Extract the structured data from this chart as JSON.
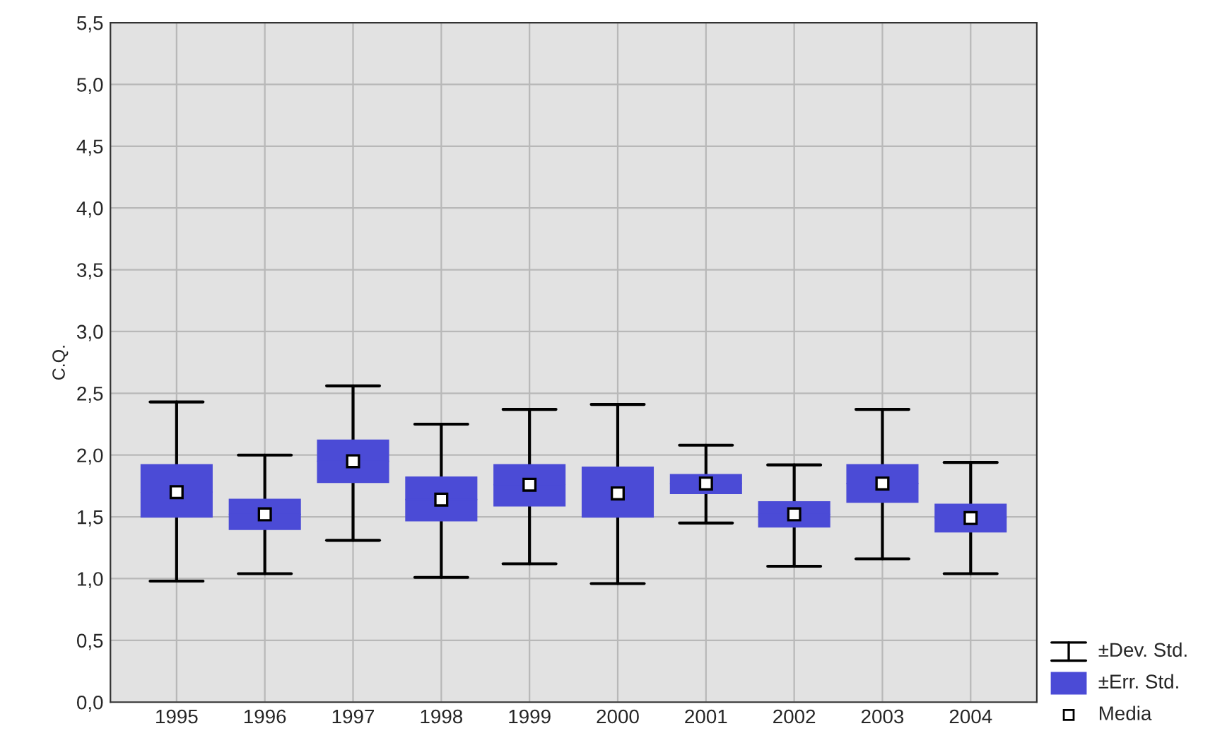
{
  "chart_data": {
    "type": "box",
    "ylabel": "C.Q.",
    "categories": [
      "1995",
      "1996",
      "1997",
      "1998",
      "1999",
      "2000",
      "2001",
      "2002",
      "2003",
      "2004"
    ],
    "boxes": [
      {
        "low": 0.98,
        "q1": 1.5,
        "median": 1.7,
        "q3": 1.92,
        "high": 2.43,
        "mean": 1.7
      },
      {
        "low": 1.04,
        "q1": 1.4,
        "median": 1.52,
        "q3": 1.64,
        "high": 2.0,
        "mean": 1.52
      },
      {
        "low": 1.31,
        "q1": 1.78,
        "median": 1.95,
        "q3": 2.12,
        "high": 2.56,
        "mean": 1.95
      },
      {
        "low": 1.01,
        "q1": 1.47,
        "median": 1.64,
        "q3": 1.82,
        "high": 2.25,
        "mean": 1.64
      },
      {
        "low": 1.12,
        "q1": 1.59,
        "median": 1.76,
        "q3": 1.92,
        "high": 2.37,
        "mean": 1.76
      },
      {
        "low": 0.96,
        "q1": 1.5,
        "median": 1.69,
        "q3": 1.9,
        "high": 2.41,
        "mean": 1.69
      },
      {
        "low": 1.45,
        "q1": 1.69,
        "median": 1.77,
        "q3": 1.84,
        "high": 2.08,
        "mean": 1.77
      },
      {
        "low": 1.1,
        "q1": 1.42,
        "median": 1.52,
        "q3": 1.62,
        "high": 1.92,
        "mean": 1.52
      },
      {
        "low": 1.16,
        "q1": 1.62,
        "median": 1.77,
        "q3": 1.92,
        "high": 2.37,
        "mean": 1.77
      },
      {
        "low": 1.04,
        "q1": 1.38,
        "median": 1.49,
        "q3": 1.6,
        "high": 1.94,
        "mean": 1.49
      }
    ],
    "color": "#4b4bd6",
    "ylim": [
      0,
      5.5
    ],
    "yticks": [
      {
        "value": 0,
        "label": "0,0"
      },
      {
        "value": 0.5,
        "label": "0,5"
      },
      {
        "value": 1,
        "label": "1,0"
      },
      {
        "value": 1.5,
        "label": "1,5"
      },
      {
        "value": 2,
        "label": "2,0"
      },
      {
        "value": 2.5,
        "label": "2,5"
      },
      {
        "value": 3,
        "label": "3,0"
      },
      {
        "value": 3.5,
        "label": "3,5"
      },
      {
        "value": 4,
        "label": "4,0"
      },
      {
        "value": 4.5,
        "label": "4,5"
      },
      {
        "value": 5,
        "label": "5,0"
      },
      {
        "value": 5.5,
        "label": "5,5"
      }
    ],
    "grid": true,
    "annotations": [
      "±Dev. Std.",
      "±Err. Std.",
      "Media"
    ]
  }
}
